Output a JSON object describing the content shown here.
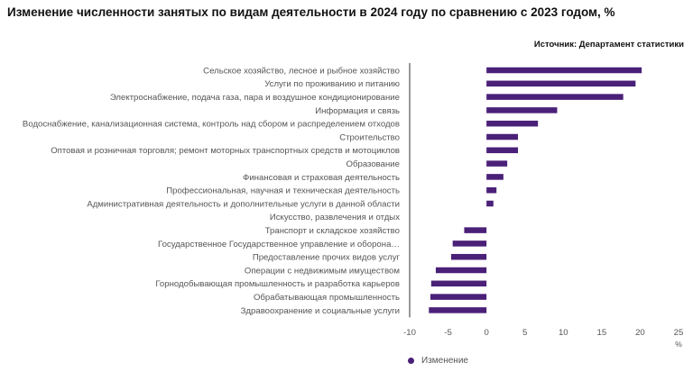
{
  "title": "Изменение численности занятых по видам деятельности в 2024 году по сравнению с 2023 годом, %",
  "source": "Источник: Департамент статистики",
  "colors": {
    "bar": "#4a2078",
    "axis": "#333333"
  },
  "chart_data": {
    "type": "bar",
    "orientation": "horizontal",
    "categories": [
      "Сельское хозяйство, лесное и рыбное хозяйство",
      "Услуги по проживанию и питанию",
      "Электроснабжение, подача газа, пара и воздушное кондиционирование",
      "Информация и связь",
      "Водоснабжение, канализационная система, контроль над сбором и распределением отходов",
      "Строительство",
      "Оптовая и розничная торговля; ремонт моторных транспортных средств и мотоциклов",
      "Образование",
      "Финансовая и страховая деятельность",
      "Профессиональная, научная и техническая деятельность",
      "Административная деятельность и дополнительные услуги в данной области",
      "Искусство, развлечения и отдых",
      "Транспорт и складское хозяйство",
      "Государственное Государственное управление и оборона…",
      "Предоставление прочих видов услуг",
      "Операции с недвижимым имуществом",
      "Горнодобывающая промышленность и разработка карьеров",
      "Обрабатывающая промышленность",
      "Здравоохранение и социальные услуги"
    ],
    "series": [
      {
        "name": "Изменение",
        "values": [
          20.2,
          19.4,
          17.8,
          9.2,
          6.7,
          4.1,
          4.1,
          2.7,
          2.2,
          1.3,
          0.9,
          0.0,
          -2.9,
          -4.4,
          -4.6,
          -6.6,
          -7.2,
          -7.3,
          -7.5
        ]
      }
    ],
    "xlim": [
      -10,
      25
    ],
    "xticks": [
      -10,
      -5,
      0,
      5,
      10,
      15,
      20,
      25
    ],
    "xunit": "%",
    "legend": "bottom"
  }
}
